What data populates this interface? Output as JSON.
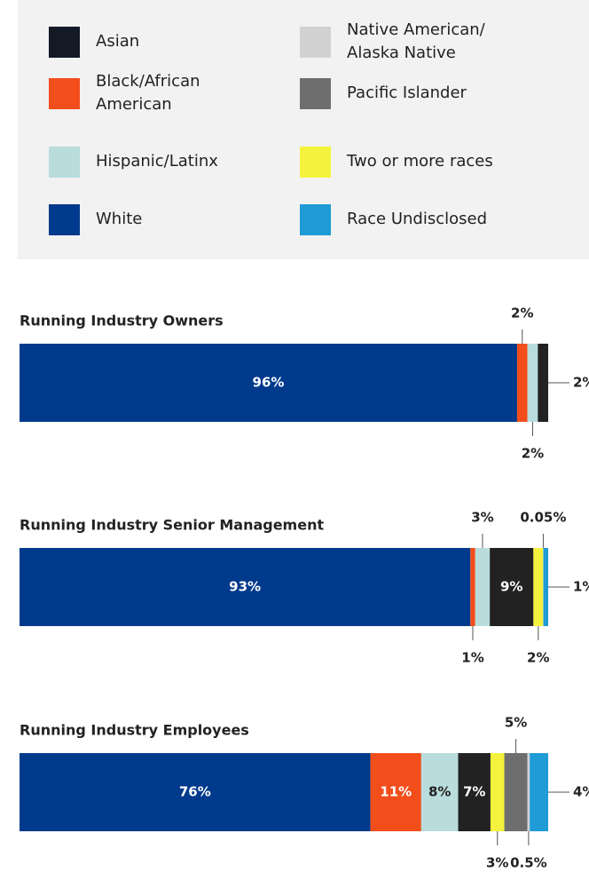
{
  "legend": {
    "items": [
      {
        "name": "Asian",
        "color": "#131a26"
      },
      {
        "name": "Native American/ Alaska Native",
        "color": "#d2d2d2"
      },
      {
        "name": "Black/African American",
        "color": "#f24e1c"
      },
      {
        "name": "Pacific Islander",
        "color": "#6e6e6e"
      },
      {
        "name": "Hispanic/Latinx",
        "color": "#b9dcdc"
      },
      {
        "name": "Two or more races",
        "color": "#f4f23c"
      },
      {
        "name": "White",
        "color": "#003a8c"
      },
      {
        "name": "Race Undisclosed",
        "color": "#1f9bd6"
      }
    ]
  },
  "chart_data": [
    {
      "type": "stacked-bar",
      "title": "Running Industry Owners",
      "series": [
        {
          "name": "White",
          "color": "#003a8c",
          "values": [
            96
          ],
          "value_labels": [
            "96%"
          ],
          "label_position": "inside"
        },
        {
          "name": "Black/African American",
          "color": "#f24e1c",
          "values": [
            2
          ],
          "value_labels": [
            "2%"
          ],
          "label_position": "above"
        },
        {
          "name": "Hispanic/Latinx",
          "color": "#b9dcdc",
          "values": [
            2
          ],
          "value_labels": [
            "2%"
          ],
          "label_position": "below"
        },
        {
          "name": "Asian",
          "color": "#222222",
          "values": [
            2
          ],
          "value_labels": [
            "2%"
          ],
          "label_position": "right"
        }
      ]
    },
    {
      "type": "stacked-bar",
      "title": "Running Industry Senior Management",
      "series": [
        {
          "name": "White",
          "color": "#003a8c",
          "values": [
            93
          ],
          "value_labels": [
            "93%"
          ],
          "label_position": "inside"
        },
        {
          "name": "Black/African American",
          "color": "#f24e1c",
          "values": [
            1
          ],
          "value_labels": [
            "1%"
          ],
          "label_position": "below"
        },
        {
          "name": "Hispanic/Latinx",
          "color": "#b9dcdc",
          "values": [
            3
          ],
          "value_labels": [
            "3%"
          ],
          "label_position": "above"
        },
        {
          "name": "Asian",
          "color": "#222222",
          "values": [
            9
          ],
          "value_labels": [
            "9%"
          ],
          "label_position": "inside"
        },
        {
          "name": "Two or more races",
          "color": "#f4f23c",
          "values": [
            2
          ],
          "value_labels": [
            "2%"
          ],
          "label_position": "below"
        },
        {
          "name": "Native American/ Alaska Native",
          "color": "#d2d2d2",
          "values": [
            0.05
          ],
          "value_labels": [
            "0.05%"
          ],
          "label_position": "above"
        },
        {
          "name": "Race Undisclosed",
          "color": "#1f9bd6",
          "values": [
            1
          ],
          "value_labels": [
            "1%"
          ],
          "label_position": "right"
        }
      ]
    },
    {
      "type": "stacked-bar",
      "title": "Running Industry Employees",
      "series": [
        {
          "name": "White",
          "color": "#003a8c",
          "values": [
            76
          ],
          "value_labels": [
            "76%"
          ],
          "label_position": "inside"
        },
        {
          "name": "Black/African American",
          "color": "#f24e1c",
          "values": [
            11
          ],
          "value_labels": [
            "11%"
          ],
          "label_position": "inside"
        },
        {
          "name": "Hispanic/Latinx",
          "color": "#b9dcdc",
          "values": [
            8
          ],
          "value_labels": [
            "8%"
          ],
          "label_position": "inside"
        },
        {
          "name": "Asian",
          "color": "#222222",
          "values": [
            7
          ],
          "value_labels": [
            "7%"
          ],
          "label_position": "inside"
        },
        {
          "name": "Two or more races",
          "color": "#f4f23c",
          "values": [
            3
          ],
          "value_labels": [
            "3%"
          ],
          "label_position": "below"
        },
        {
          "name": "Pacific Islander",
          "color": "#6e6e6e",
          "values": [
            5
          ],
          "value_labels": [
            "5%"
          ],
          "label_position": "above"
        },
        {
          "name": "Native American/ Alaska Native",
          "color": "#d2d2d2",
          "values": [
            0.5
          ],
          "value_labels": [
            "0.5%"
          ],
          "label_position": "below"
        },
        {
          "name": "Race Undisclosed",
          "color": "#1f9bd6",
          "values": [
            4
          ],
          "value_labels": [
            "4%"
          ],
          "label_position": "right"
        }
      ]
    }
  ]
}
